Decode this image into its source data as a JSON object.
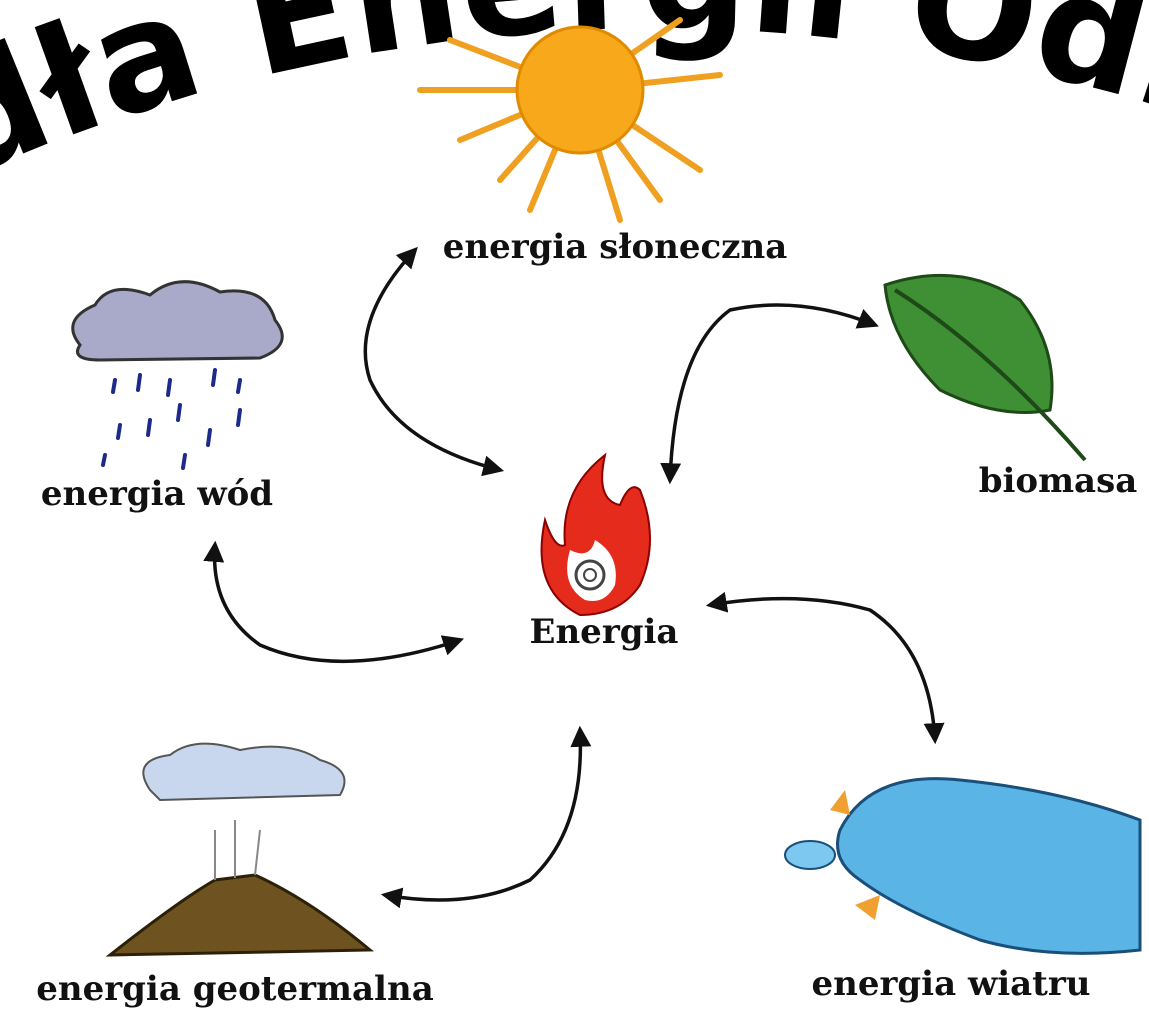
{
  "title": "dła Energii Odnawia",
  "center": {
    "label": "Energia"
  },
  "nodes": [
    {
      "label": "energia słoneczna"
    },
    {
      "label": "energia wód"
    },
    {
      "label": "biomasa"
    },
    {
      "label": "energia geotermalna"
    },
    {
      "label": "energia wiatru"
    }
  ]
}
